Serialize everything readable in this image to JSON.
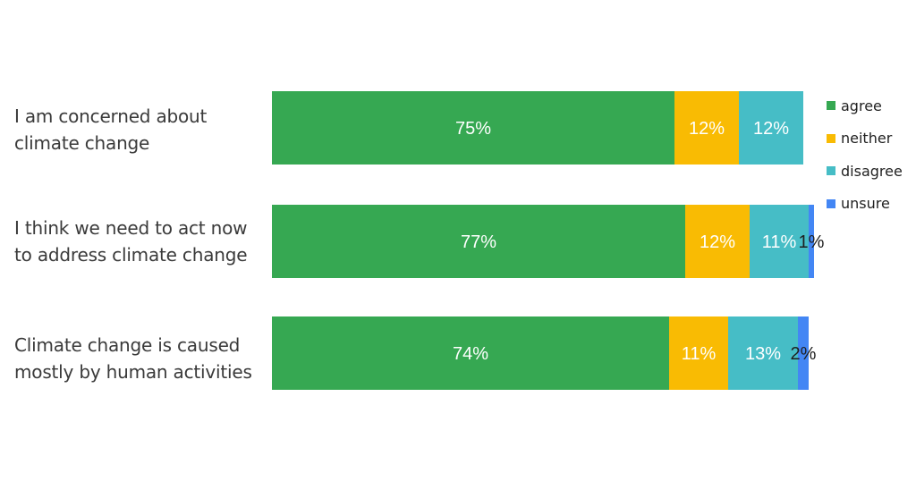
{
  "chart_data": {
    "type": "bar",
    "orientation": "horizontal",
    "stacked": true,
    "categories": [
      "I am concerned about\nclimate change",
      "I think we need to act now\nto address climate change",
      "Climate change is caused\nmostly by human activities"
    ],
    "series": [
      {
        "name": "agree",
        "color": "#36a852",
        "values": [
          75,
          77,
          74
        ],
        "labels": [
          "75%",
          "77%",
          "74%"
        ]
      },
      {
        "name": "neither",
        "color": "#f9bb03",
        "values": [
          12,
          12,
          11
        ],
        "labels": [
          "12%",
          "12%",
          "11%"
        ]
      },
      {
        "name": "disagree",
        "color": "#46bdc6",
        "values": [
          12,
          11,
          13
        ],
        "labels": [
          "12%",
          "11%",
          "13%"
        ]
      },
      {
        "name": "unsure",
        "color": "#4386f4",
        "values": [
          0,
          1,
          2
        ],
        "labels": [
          "",
          "1%",
          "2%"
        ]
      }
    ],
    "xlim": [
      0,
      100
    ],
    "grid": false,
    "legend_position": "right"
  }
}
